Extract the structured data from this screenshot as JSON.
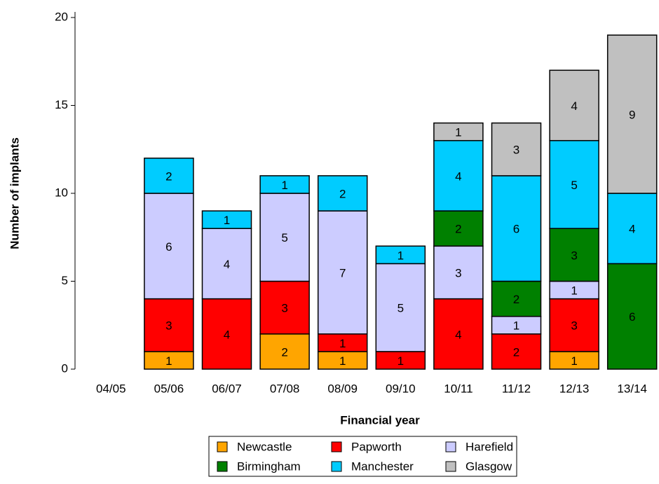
{
  "chart_data": {
    "type": "stacked_bar",
    "x_label": "Financial year",
    "y_label": "Number of implants",
    "categories": [
      "04/05",
      "05/06",
      "06/07",
      "07/08",
      "08/09",
      "09/10",
      "10/11",
      "11/12",
      "12/13",
      "13/14"
    ],
    "series": [
      {
        "name": "Newcastle",
        "color": "#ffa500",
        "values": [
          0,
          1,
          0,
          2,
          1,
          0,
          0,
          0,
          1,
          0
        ]
      },
      {
        "name": "Papworth",
        "color": "#ff0000",
        "values": [
          0,
          3,
          4,
          3,
          1,
          1,
          4,
          2,
          3,
          0
        ]
      },
      {
        "name": "Harefield",
        "color": "#ccccff",
        "values": [
          0,
          6,
          4,
          5,
          7,
          5,
          3,
          1,
          1,
          0
        ]
      },
      {
        "name": "Birmingham",
        "color": "#008000",
        "values": [
          0,
          0,
          0,
          0,
          0,
          0,
          2,
          2,
          3,
          6
        ]
      },
      {
        "name": "Manchester",
        "color": "#00ccff",
        "values": [
          0,
          2,
          1,
          1,
          2,
          1,
          4,
          6,
          5,
          4
        ]
      },
      {
        "name": "Glasgow",
        "color": "#c0c0c0",
        "values": [
          0,
          0,
          0,
          0,
          0,
          0,
          1,
          3,
          4,
          9
        ]
      }
    ],
    "ylim": [
      0,
      20
    ],
    "yticks": [
      0,
      5,
      10,
      15,
      20
    ]
  }
}
